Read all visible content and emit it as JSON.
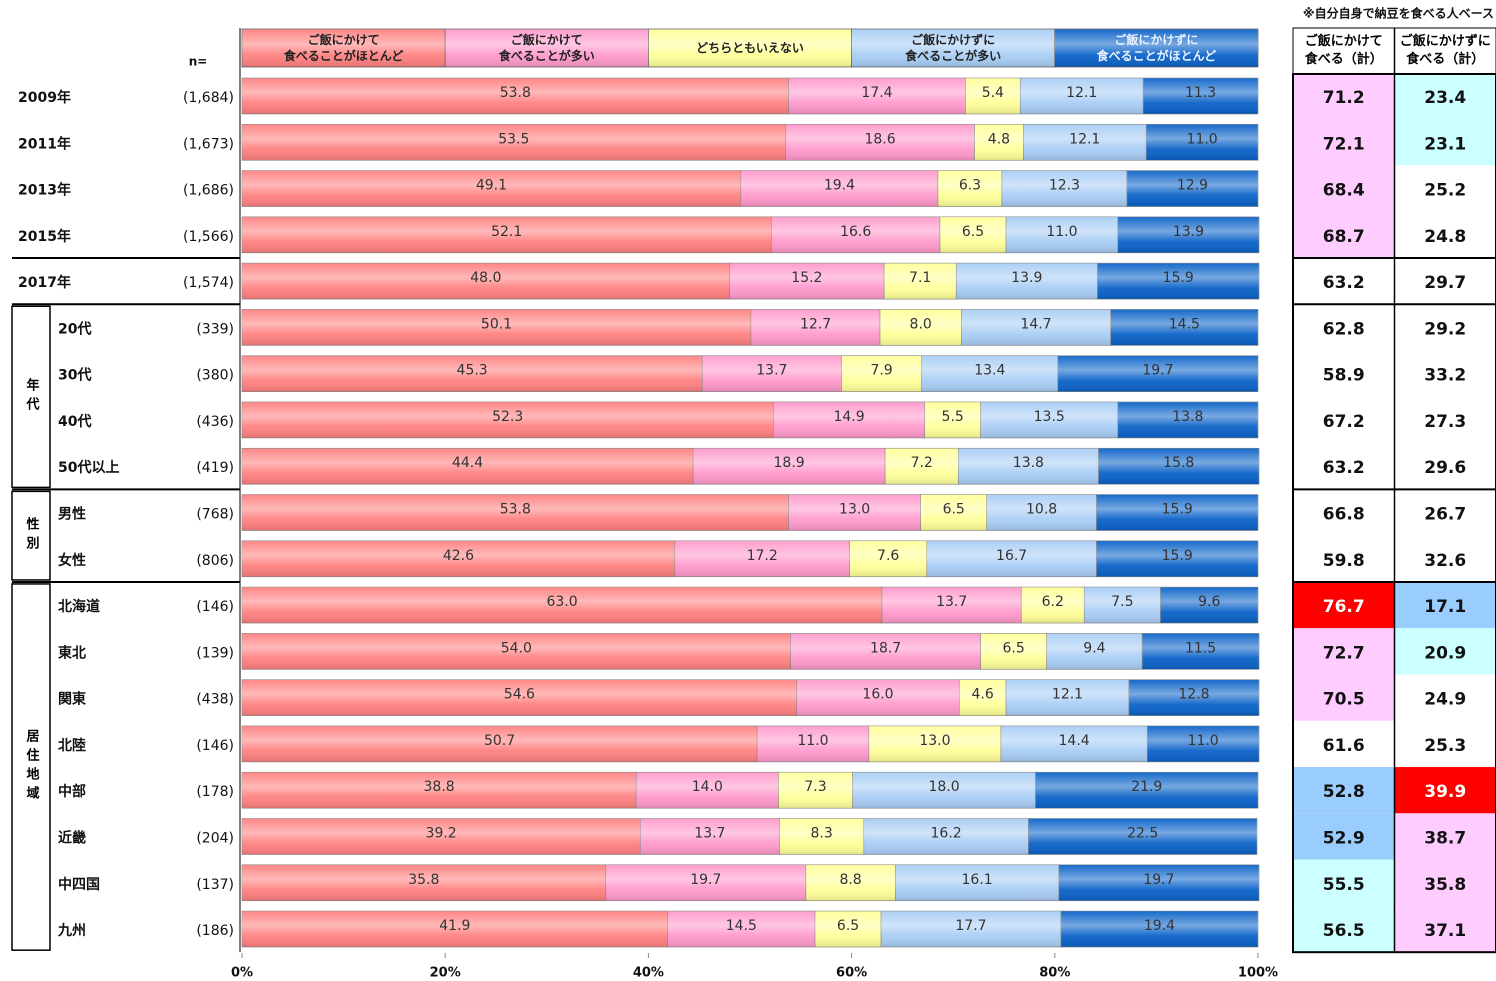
{
  "chart_data": {
    "type": "bar",
    "stacked": true,
    "orientation": "horizontal",
    "note": "※自分自身で納豆を食べる人ベース",
    "n_label": "n=",
    "categories": [
      "2009年",
      "2011年",
      "2013年",
      "2015年",
      "2017年",
      "20代",
      "30代",
      "40代",
      "50代以上",
      "男性",
      "女性",
      "北海道",
      "東北",
      "関東",
      "北陸",
      "中部",
      "近畿",
      "中四国",
      "九州"
    ],
    "n": [
      "(1,684)",
      "(1,673)",
      "(1,686)",
      "(1,566)",
      "(1,574)",
      "(339)",
      "(380)",
      "(436)",
      "(419)",
      "(768)",
      "(806)",
      "(146)",
      "(139)",
      "(438)",
      "(146)",
      "(178)",
      "(204)",
      "(137)",
      "(186)"
    ],
    "groups": [
      {
        "label": "年代",
        "rows": [
          5,
          6,
          7,
          8
        ]
      },
      {
        "label": "性別",
        "rows": [
          9,
          10
        ]
      },
      {
        "label": "居住地域",
        "rows": [
          11,
          12,
          13,
          14,
          15,
          16,
          17,
          18
        ]
      }
    ],
    "series": [
      {
        "name": "ご飯にかけて\n食べることがほとんど",
        "color": "#ff8080",
        "values": [
          53.8,
          53.5,
          49.1,
          52.1,
          48.0,
          50.1,
          45.3,
          52.3,
          44.4,
          53.8,
          42.6,
          63.0,
          54.0,
          54.6,
          50.7,
          38.8,
          39.2,
          35.8,
          41.9
        ],
        "value_labels": [
          "53.8",
          "53.5",
          "49.1",
          "52.1",
          "48.0",
          "50.1",
          "45.3",
          "52.3",
          "44.4",
          "53.8",
          "42.6",
          "63.0",
          "54.0",
          "54.6",
          "50.7",
          "38.8",
          "39.2",
          "35.8",
          "41.9"
        ]
      },
      {
        "name": "ご飯にかけて\n食べることが多い",
        "color": "#ff99cc",
        "values": [
          17.4,
          18.6,
          19.4,
          16.6,
          15.2,
          12.7,
          13.7,
          14.9,
          18.9,
          13.0,
          17.2,
          13.7,
          18.7,
          16.0,
          11.0,
          14.0,
          13.7,
          19.7,
          14.5
        ],
        "value_labels": [
          "17.4",
          "18.6",
          "19.4",
          "16.6",
          "15.2",
          "12.7",
          "13.7",
          "14.9",
          "18.9",
          "13.0",
          "17.2",
          "13.7",
          "18.7",
          "16.0",
          "11.0",
          "14.0",
          "13.7",
          "19.7",
          "14.5"
        ]
      },
      {
        "name": "どちらともいえない",
        "color": "#ffff99",
        "values": [
          5.4,
          4.8,
          6.3,
          6.5,
          7.1,
          8.0,
          7.9,
          5.5,
          7.2,
          6.5,
          7.6,
          6.2,
          6.5,
          4.6,
          13.0,
          7.3,
          8.3,
          8.8,
          6.5
        ],
        "value_labels": [
          "5.4",
          "4.8",
          "6.3",
          "6.5",
          "7.1",
          "8.0",
          "7.9",
          "5.5",
          "7.2",
          "6.5",
          "7.6",
          "6.2",
          "6.5",
          "4.6",
          "13.0",
          "7.3",
          "8.3",
          "8.8",
          "6.5"
        ]
      },
      {
        "name": "ご飯にかけずに\n食べることが多い",
        "color": "#a8cdf5",
        "values": [
          12.1,
          12.1,
          12.3,
          11.0,
          13.9,
          14.7,
          13.4,
          13.5,
          13.8,
          10.8,
          16.7,
          7.5,
          9.4,
          12.1,
          14.4,
          18.0,
          16.2,
          16.1,
          17.7
        ],
        "value_labels": [
          "12.1",
          "12.1",
          "12.3",
          "11.0",
          "13.9",
          "14.7",
          "13.4",
          "13.5",
          "13.8",
          "10.8",
          "16.7",
          "7.5",
          "9.4",
          "12.1",
          "14.4",
          "18.0",
          "16.2",
          "16.1",
          "17.7"
        ]
      },
      {
        "name": "ご飯にかけずに\n食べることがほとんど",
        "color": "#0a62c8",
        "values": [
          11.3,
          11.0,
          12.9,
          13.9,
          15.9,
          14.5,
          19.7,
          13.8,
          15.8,
          15.9,
          15.9,
          9.6,
          11.5,
          12.8,
          11.0,
          21.9,
          22.5,
          19.7,
          19.4
        ],
        "value_labels": [
          "11.3",
          "11.0",
          "12.9",
          "13.9",
          "15.9",
          "14.5",
          "19.7",
          "13.8",
          "15.8",
          "15.9",
          "15.9",
          "9.6",
          "11.5",
          "12.8",
          "11.0",
          "21.9",
          "22.5",
          "19.7",
          "19.4"
        ]
      }
    ],
    "xlim": [
      0,
      100
    ],
    "xticks": [
      {
        "value": 0,
        "label": "0%"
      },
      {
        "value": 20,
        "label": "20%"
      },
      {
        "value": 40,
        "label": "40%"
      },
      {
        "value": 60,
        "label": "60%"
      },
      {
        "value": 80,
        "label": "80%"
      },
      {
        "value": 100,
        "label": "100%"
      }
    ],
    "summary": [
      {
        "header": "ご飯にかけて\n食べる（計）",
        "values": [
          71.2,
          72.1,
          68.4,
          68.7,
          63.2,
          62.8,
          58.9,
          67.2,
          63.2,
          66.8,
          59.8,
          76.7,
          72.7,
          70.5,
          61.6,
          52.8,
          52.9,
          55.5,
          56.5
        ],
        "colors": [
          "#ffccff",
          "#ffccff",
          "#ffccff",
          "#ffccff",
          "#ffffff",
          "#ffffff",
          "#ffffff",
          "#ffffff",
          "#ffffff",
          "#ffffff",
          "#ffffff",
          "#ff0000",
          "#ffccff",
          "#ffccff",
          "#ffffff",
          "#99ccff",
          "#99ccff",
          "#ccffff",
          "#ccffff"
        ]
      },
      {
        "header": "ご飯にかけずに\n食べる（計）",
        "values": [
          23.4,
          23.1,
          25.2,
          24.8,
          29.7,
          29.2,
          33.2,
          27.3,
          29.6,
          26.7,
          32.6,
          17.1,
          20.9,
          24.9,
          25.3,
          39.9,
          38.7,
          35.8,
          37.1
        ],
        "colors": [
          "#ccffff",
          "#ccffff",
          "#ffffff",
          "#ffffff",
          "#ffffff",
          "#ffffff",
          "#ffffff",
          "#ffffff",
          "#ffffff",
          "#ffffff",
          "#ffffff",
          "#99ccff",
          "#ccffff",
          "#ffffff",
          "#ffffff",
          "#ff0000",
          "#ffccff",
          "#ffccff",
          "#ffccff"
        ]
      }
    ]
  }
}
